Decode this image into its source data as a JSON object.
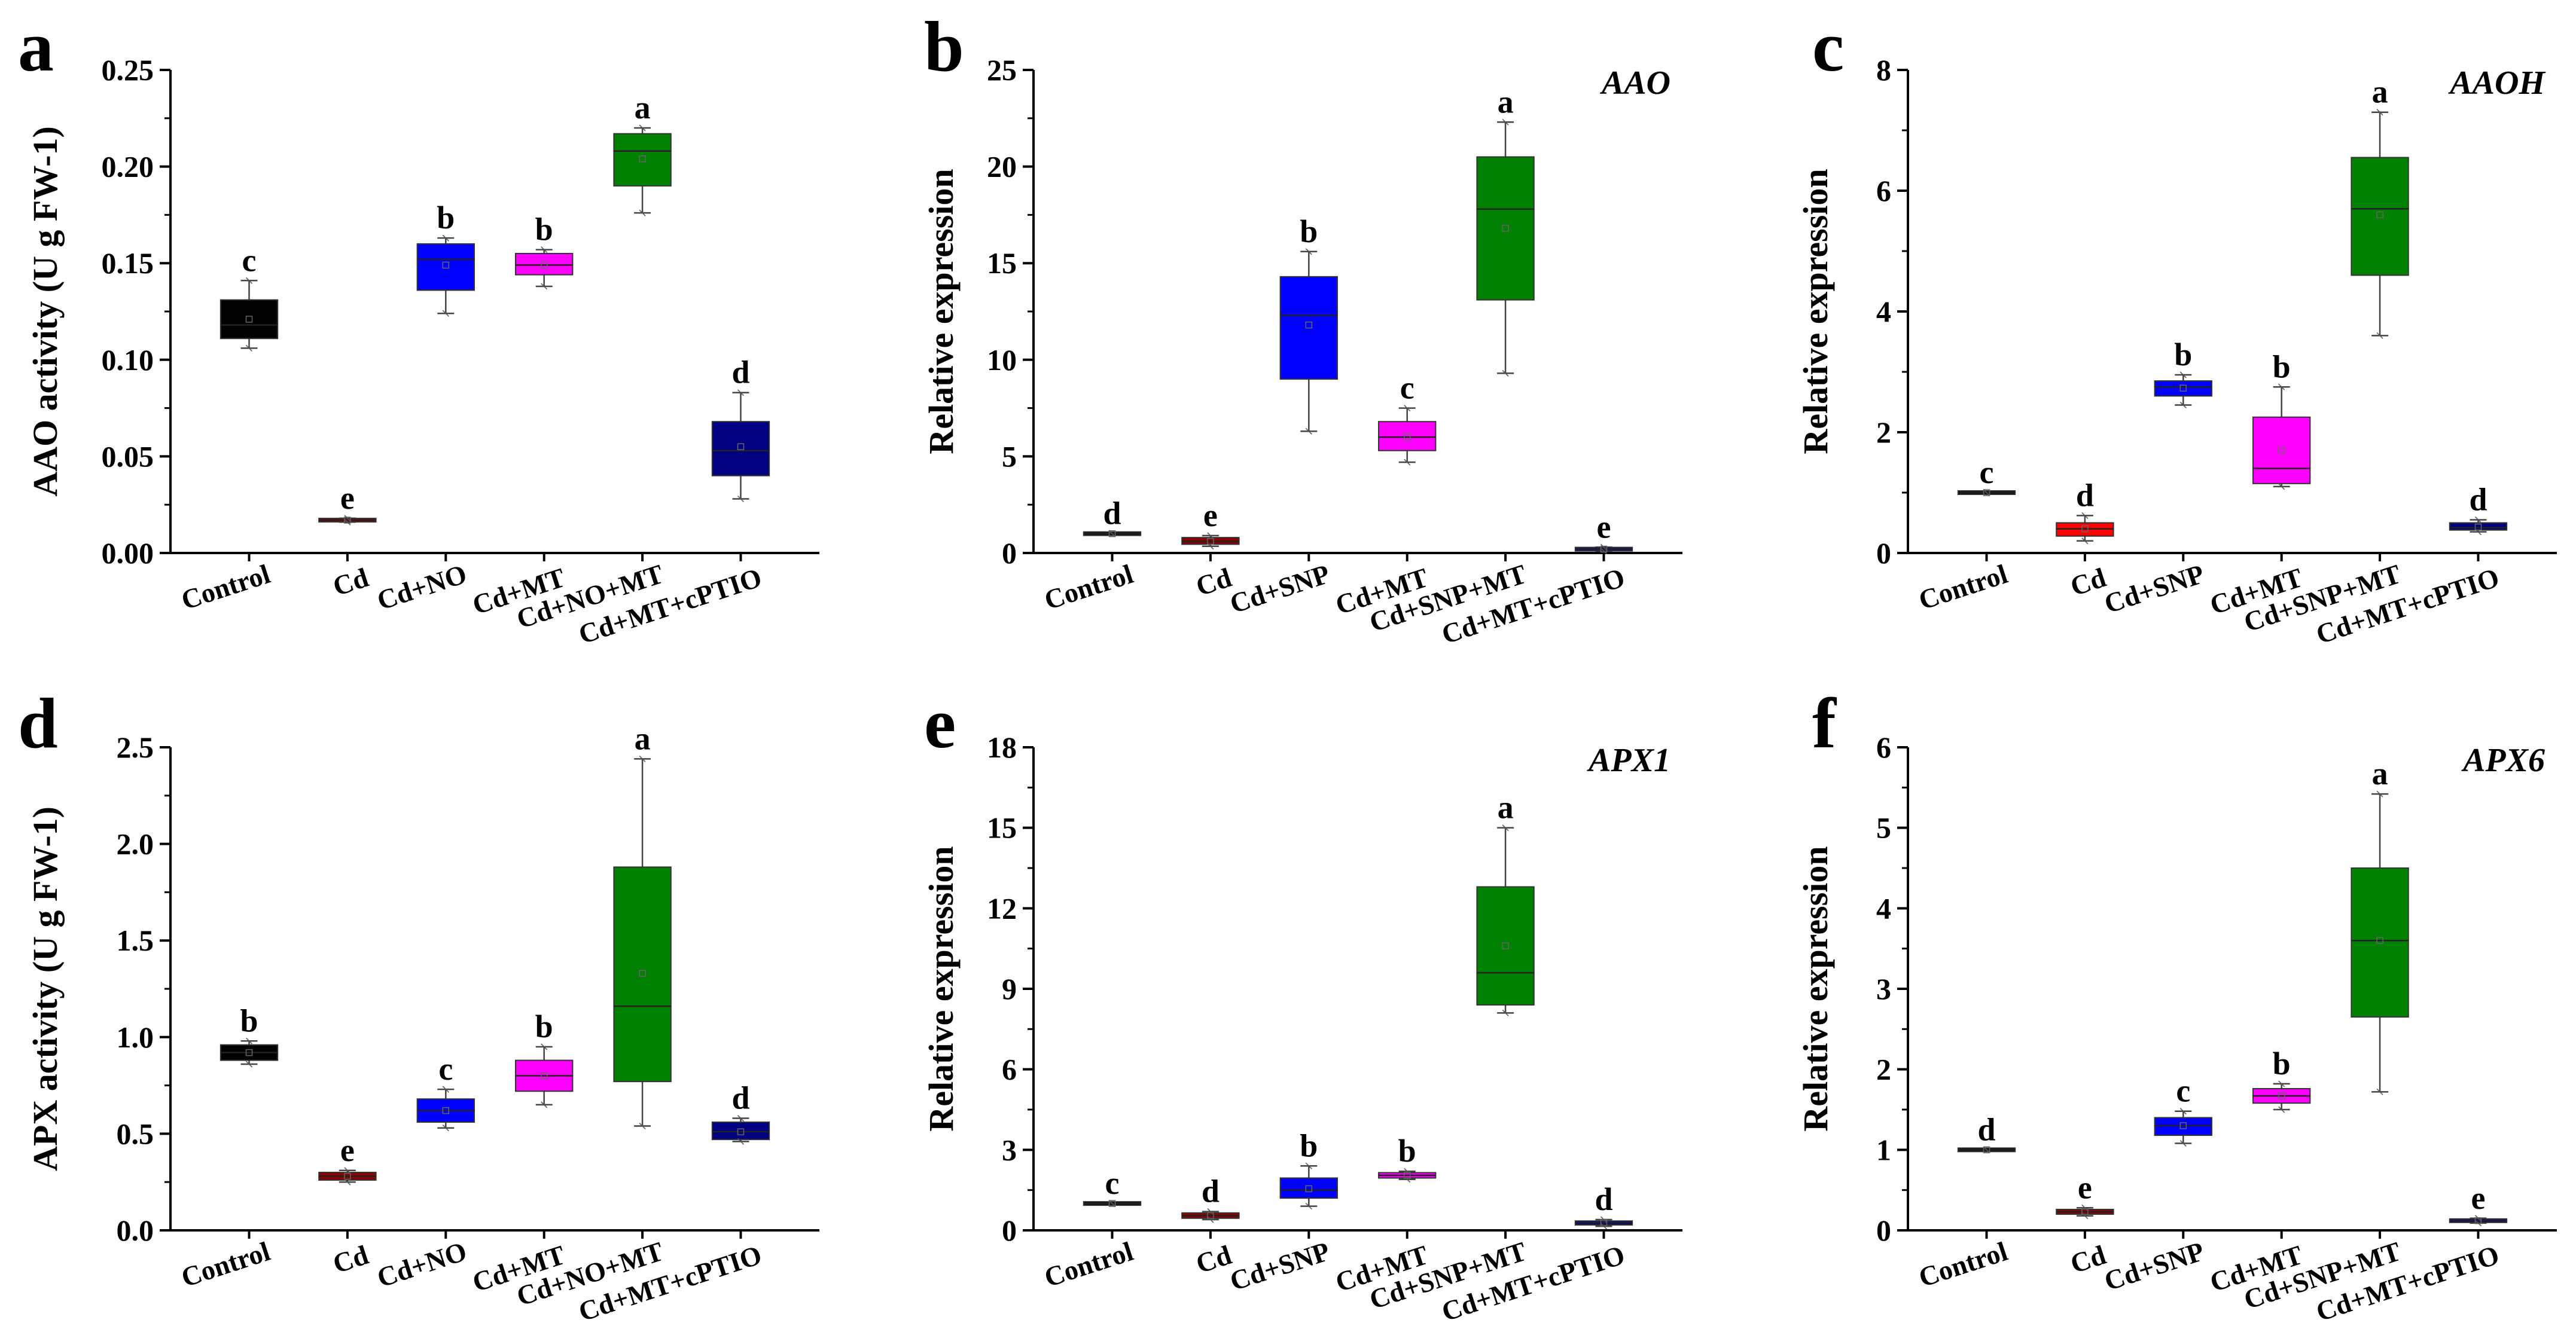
{
  "chart_data": [
    {
      "type": "box",
      "panel": "a",
      "title": "",
      "ylabel": "AAO activity (U g FW-1)",
      "ylim": [
        0,
        0.25
      ],
      "yticks": [
        "0.00",
        "0.05",
        "0.10",
        "0.15",
        "0.20",
        "0.25"
      ],
      "categories": [
        "Control",
        "Cd",
        "Cd+NO",
        "Cd+MT",
        "Cd+NO+MT",
        "Cd+MT+cPTIO"
      ],
      "colors": [
        "#000000",
        "#8b0000",
        "#0000ff",
        "#ff00ff",
        "#008000",
        "#000080"
      ],
      "boxes": [
        {
          "q1": 0.111,
          "median": 0.118,
          "q3": 0.131,
          "min": 0.106,
          "max": 0.141,
          "mean": 0.121
        },
        {
          "q1": 0.0165,
          "median": 0.017,
          "q3": 0.0175,
          "min": 0.016,
          "max": 0.018,
          "mean": 0.017
        },
        {
          "q1": 0.136,
          "median": 0.152,
          "q3": 0.16,
          "min": 0.124,
          "max": 0.163,
          "mean": 0.149
        },
        {
          "q1": 0.144,
          "median": 0.149,
          "q3": 0.155,
          "min": 0.138,
          "max": 0.157,
          "mean": 0.149
        },
        {
          "q1": 0.19,
          "median": 0.208,
          "q3": 0.217,
          "min": 0.176,
          "max": 0.22,
          "mean": 0.204
        },
        {
          "q1": 0.04,
          "median": 0.053,
          "q3": 0.068,
          "min": 0.028,
          "max": 0.083,
          "mean": 0.055
        }
      ],
      "letters": [
        "c",
        "e",
        "b",
        "b",
        "a",
        "d"
      ]
    },
    {
      "type": "box",
      "panel": "b",
      "title": "AAO",
      "ylabel": "Relative expression",
      "ylim": [
        0,
        25
      ],
      "yticks": [
        "0",
        "5",
        "10",
        "15",
        "20",
        "25"
      ],
      "categories": [
        "Control",
        "Cd",
        "Cd+SNP",
        "Cd+MT",
        "Cd+SNP+MT",
        "Cd+MT+cPTIO"
      ],
      "colors": [
        "#000000",
        "#8b0000",
        "#0000ff",
        "#ff00ff",
        "#008000",
        "#000080"
      ],
      "boxes": [
        {
          "q1": 1.0,
          "median": 1.0,
          "q3": 1.0,
          "min": 1.0,
          "max": 1.0,
          "mean": 1.0
        },
        {
          "q1": 0.45,
          "median": 0.6,
          "q3": 0.8,
          "min": 0.35,
          "max": 0.9,
          "mean": 0.6
        },
        {
          "q1": 9.0,
          "median": 12.3,
          "q3": 14.3,
          "min": 6.3,
          "max": 15.6,
          "mean": 11.8
        },
        {
          "q1": 5.3,
          "median": 6.0,
          "q3": 6.8,
          "min": 4.7,
          "max": 7.5,
          "mean": 6.0
        },
        {
          "q1": 13.1,
          "median": 17.8,
          "q3": 20.5,
          "min": 9.3,
          "max": 22.3,
          "mean": 16.8
        },
        {
          "q1": 0.15,
          "median": 0.2,
          "q3": 0.25,
          "min": 0.1,
          "max": 0.3,
          "mean": 0.2
        }
      ],
      "letters": [
        "d",
        "e",
        "b",
        "c",
        "a",
        "e"
      ]
    },
    {
      "type": "box",
      "panel": "c",
      "title": "AAOH",
      "ylabel": "Relative expression",
      "ylim": [
        0,
        8
      ],
      "yticks": [
        "0",
        "2",
        "4",
        "6",
        "8"
      ],
      "categories": [
        "Control",
        "Cd",
        "Cd+SNP",
        "Cd+MT",
        "Cd+SNP+MT",
        "Cd+MT+cPTIO"
      ],
      "colors": [
        "#000000",
        "#ff0000",
        "#0000ff",
        "#ff00ff",
        "#008000",
        "#000080"
      ],
      "boxes": [
        {
          "q1": 1.0,
          "median": 1.0,
          "q3": 1.0,
          "min": 1.0,
          "max": 1.0,
          "mean": 1.0
        },
        {
          "q1": 0.28,
          "median": 0.4,
          "q3": 0.5,
          "min": 0.2,
          "max": 0.62,
          "mean": 0.4
        },
        {
          "q1": 2.6,
          "median": 2.75,
          "q3": 2.85,
          "min": 2.45,
          "max": 2.95,
          "mean": 2.73
        },
        {
          "q1": 1.15,
          "median": 1.4,
          "q3": 2.25,
          "min": 1.1,
          "max": 2.75,
          "mean": 1.7
        },
        {
          "q1": 4.6,
          "median": 5.7,
          "q3": 6.55,
          "min": 3.6,
          "max": 7.3,
          "mean": 5.6
        },
        {
          "q1": 0.38,
          "median": 0.42,
          "q3": 0.5,
          "min": 0.35,
          "max": 0.55,
          "mean": 0.43
        }
      ],
      "letters": [
        "c",
        "d",
        "b",
        "b",
        "a",
        "d"
      ]
    },
    {
      "type": "box",
      "panel": "d",
      "title": "",
      "ylabel": "APX activity (U g FW-1)",
      "ylim": [
        0,
        2.5
      ],
      "yticks": [
        "0.0",
        "0.5",
        "1.0",
        "1.5",
        "2.0",
        "2.5"
      ],
      "categories": [
        "Control",
        "Cd",
        "Cd+NO",
        "Cd+MT",
        "Cd+NO+MT",
        "Cd+MT+cPTIO"
      ],
      "colors": [
        "#000000",
        "#8b0000",
        "#0000ff",
        "#ff00ff",
        "#008000",
        "#000080"
      ],
      "boxes": [
        {
          "q1": 0.88,
          "median": 0.92,
          "q3": 0.96,
          "min": 0.86,
          "max": 0.98,
          "mean": 0.92
        },
        {
          "q1": 0.26,
          "median": 0.28,
          "q3": 0.3,
          "min": 0.25,
          "max": 0.31,
          "mean": 0.28
        },
        {
          "q1": 0.56,
          "median": 0.62,
          "q3": 0.68,
          "min": 0.53,
          "max": 0.73,
          "mean": 0.62
        },
        {
          "q1": 0.72,
          "median": 0.8,
          "q3": 0.88,
          "min": 0.65,
          "max": 0.95,
          "mean": 0.8
        },
        {
          "q1": 0.77,
          "median": 1.16,
          "q3": 1.88,
          "min": 0.54,
          "max": 2.44,
          "mean": 1.33
        },
        {
          "q1": 0.47,
          "median": 0.51,
          "q3": 0.56,
          "min": 0.46,
          "max": 0.58,
          "mean": 0.51
        }
      ],
      "letters": [
        "b",
        "e",
        "c",
        "b",
        "a",
        "d"
      ]
    },
    {
      "type": "box",
      "panel": "e",
      "title": "APX1",
      "ylabel": "Relative expression",
      "ylim": [
        0,
        18
      ],
      "yticks": [
        "0",
        "3",
        "6",
        "9",
        "12",
        "15",
        "18"
      ],
      "categories": [
        "Control",
        "Cd",
        "Cd+SNP",
        "Cd+MT",
        "Cd+SNP+MT",
        "Cd+MT+cPTIO"
      ],
      "colors": [
        "#000000",
        "#8b0000",
        "#0000ff",
        "#ff00ff",
        "#008000",
        "#000080"
      ],
      "boxes": [
        {
          "q1": 1.0,
          "median": 1.0,
          "q3": 1.0,
          "min": 1.0,
          "max": 1.0,
          "mean": 1.0
        },
        {
          "q1": 0.45,
          "median": 0.55,
          "q3": 0.65,
          "min": 0.4,
          "max": 0.7,
          "mean": 0.55
        },
        {
          "q1": 1.2,
          "median": 1.5,
          "q3": 1.95,
          "min": 0.9,
          "max": 2.4,
          "mean": 1.55
        },
        {
          "q1": 1.95,
          "median": 2.05,
          "q3": 2.15,
          "min": 1.9,
          "max": 2.2,
          "mean": 2.05
        },
        {
          "q1": 8.4,
          "median": 9.6,
          "q3": 12.8,
          "min": 8.1,
          "max": 15.0,
          "mean": 10.6
        },
        {
          "q1": 0.2,
          "median": 0.28,
          "q3": 0.35,
          "min": 0.15,
          "max": 0.4,
          "mean": 0.28
        }
      ],
      "letters": [
        "c",
        "d",
        "b",
        "b",
        "a",
        "d"
      ]
    },
    {
      "type": "box",
      "panel": "f",
      "title": "APX6",
      "ylabel": "Relative expression",
      "ylim": [
        0,
        6
      ],
      "yticks": [
        "0",
        "1",
        "2",
        "3",
        "4",
        "5",
        "6"
      ],
      "categories": [
        "Control",
        "Cd",
        "Cd+SNP",
        "Cd+MT",
        "Cd+SNP+MT",
        "Cd+MT+cPTIO"
      ],
      "colors": [
        "#000000",
        "#8b0000",
        "#0000ff",
        "#ff00ff",
        "#008000",
        "#000080"
      ],
      "boxes": [
        {
          "q1": 1.0,
          "median": 1.0,
          "q3": 1.0,
          "min": 1.0,
          "max": 1.0,
          "mean": 1.0
        },
        {
          "q1": 0.2,
          "median": 0.23,
          "q3": 0.26,
          "min": 0.18,
          "max": 0.28,
          "mean": 0.23
        },
        {
          "q1": 1.18,
          "median": 1.3,
          "q3": 1.4,
          "min": 1.08,
          "max": 1.48,
          "mean": 1.3
        },
        {
          "q1": 1.58,
          "median": 1.67,
          "q3": 1.76,
          "min": 1.5,
          "max": 1.82,
          "mean": 1.67
        },
        {
          "q1": 2.65,
          "median": 3.6,
          "q3": 4.5,
          "min": 1.72,
          "max": 5.42,
          "mean": 3.6
        },
        {
          "q1": 0.1,
          "median": 0.12,
          "q3": 0.14,
          "min": 0.09,
          "max": 0.15,
          "mean": 0.12
        }
      ],
      "letters": [
        "d",
        "e",
        "c",
        "b",
        "a",
        "e"
      ]
    }
  ]
}
